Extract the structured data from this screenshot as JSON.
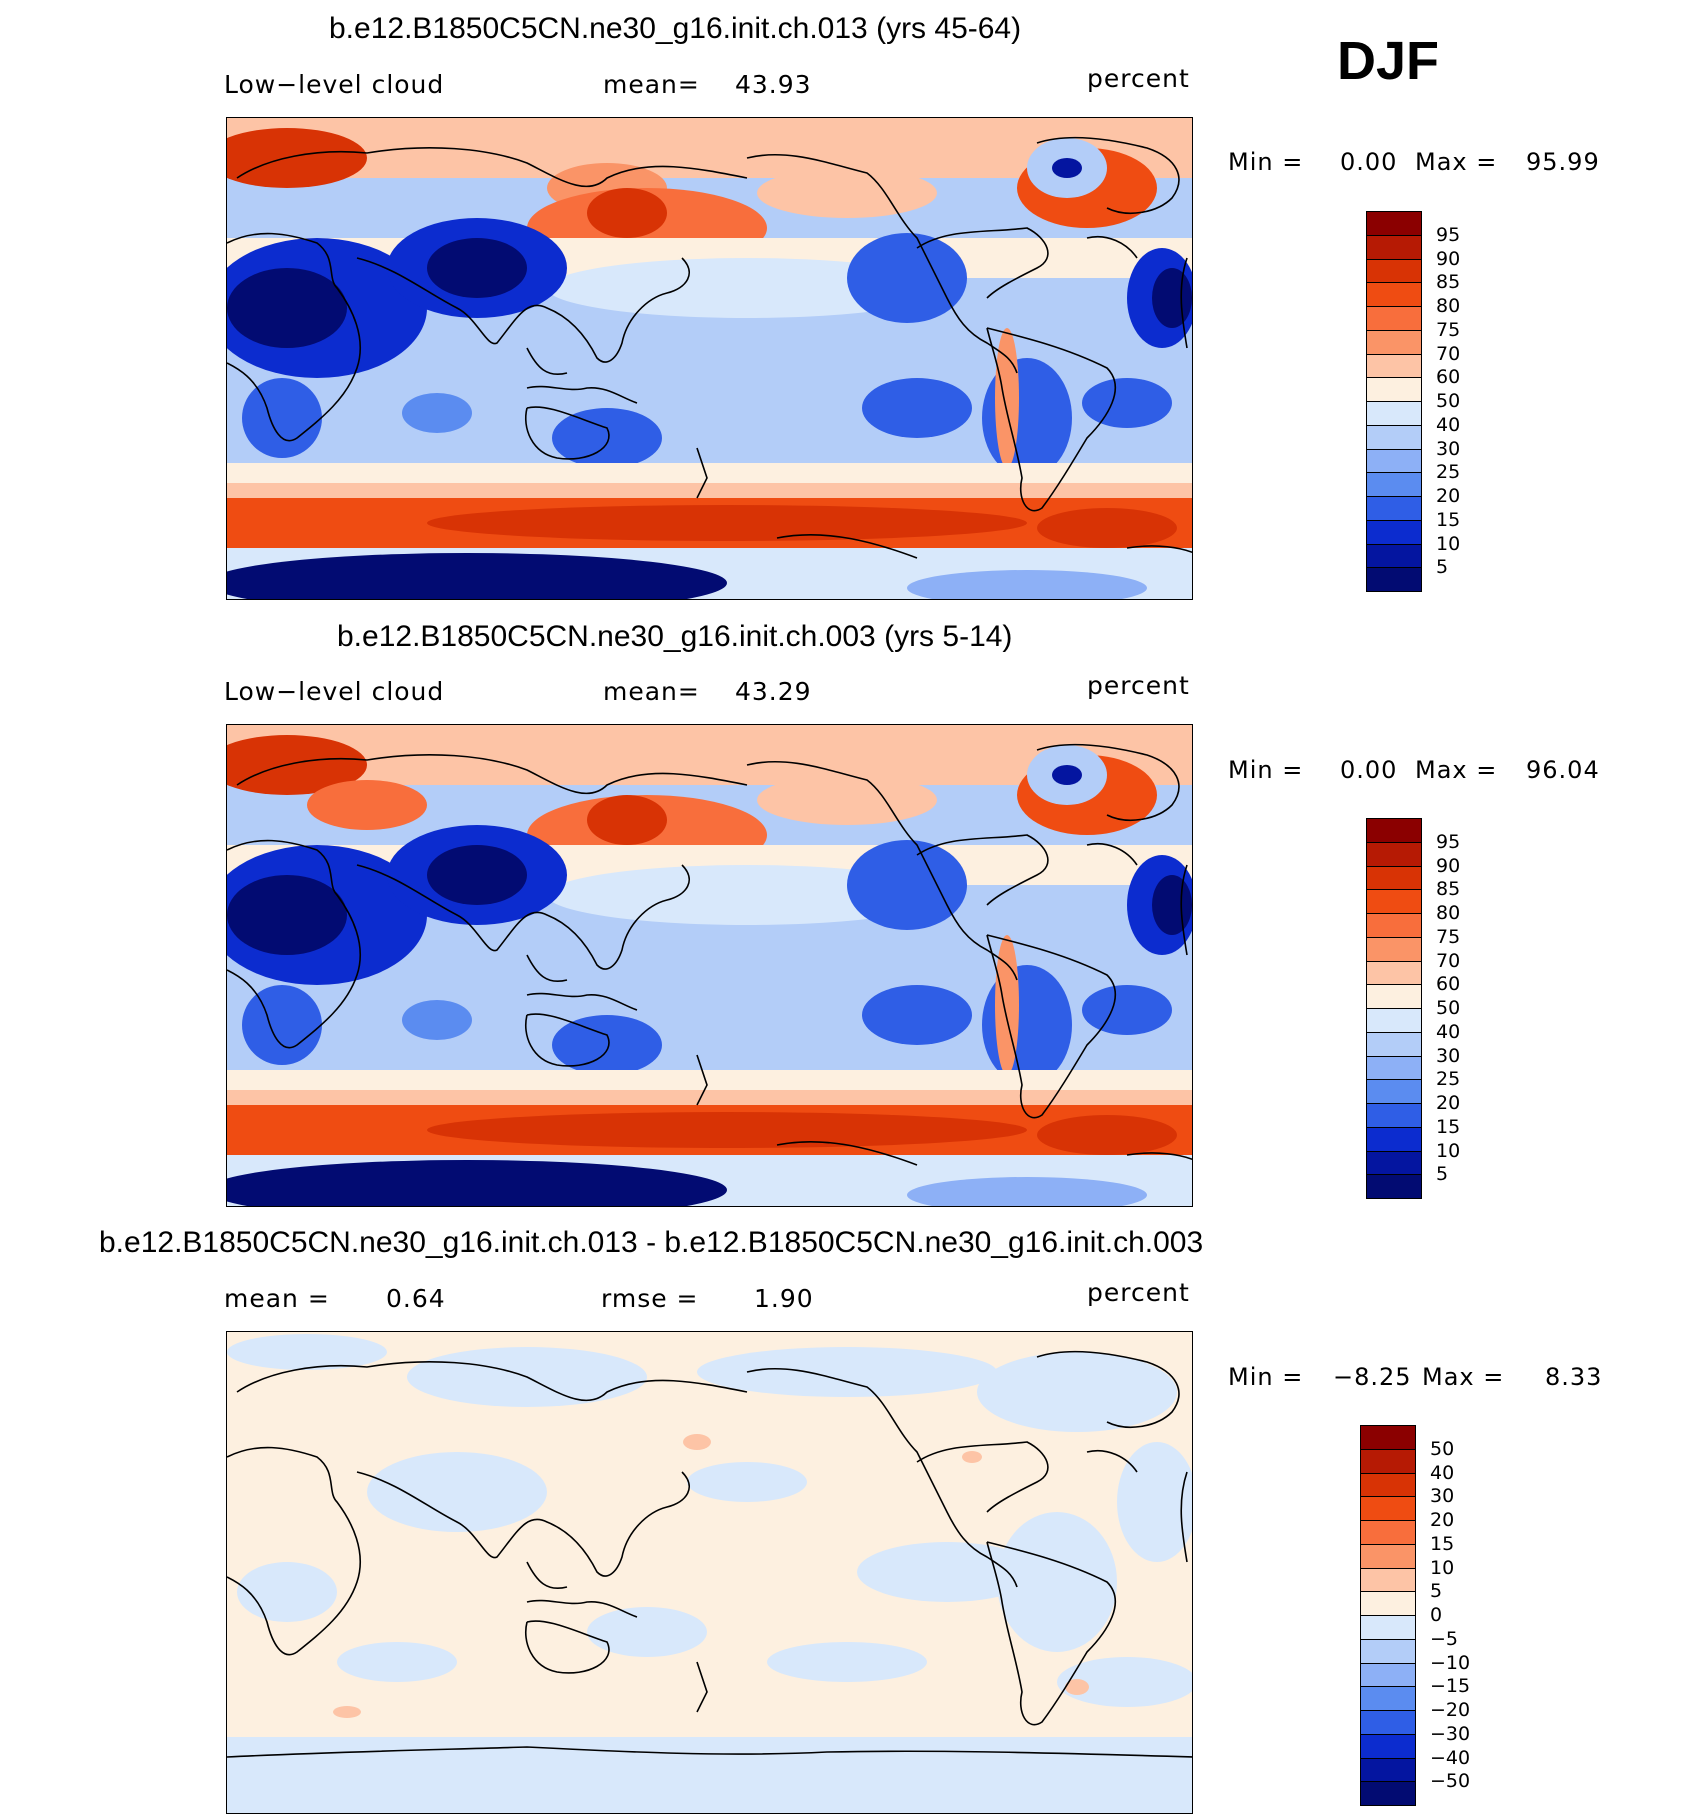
{
  "season": "DJF",
  "unit_label": "percent",
  "panels": [
    {
      "title": "b.e12.B1850C5CN.ne30_g16.init.ch.013 (yrs 45-64)",
      "left_label": "Low−level cloud",
      "stat_label": "mean=",
      "stat_value": "43.93",
      "minmax": {
        "min_label": "Min =",
        "min": "0.00",
        "max_label": "Max =",
        "max": "95.99"
      }
    },
    {
      "title": "b.e12.B1850C5CN.ne30_g16.init.ch.003 (yrs 5-14)",
      "left_label": "Low−level cloud",
      "stat_label": "mean=",
      "stat_value": "43.29",
      "minmax": {
        "min_label": "Min =",
        "min": "0.00",
        "max_label": "Max =",
        "max": "96.04"
      }
    },
    {
      "title": "b.e12.B1850C5CN.ne30_g16.init.ch.013 - b.e12.B1850C5CN.ne30_g16.init.ch.003",
      "left_label": "mean =",
      "left_value": "0.64",
      "stat_label": "rmse =",
      "stat_value": "1.90",
      "minmax": {
        "min_label": "Min =",
        "min": "−8.25",
        "max_label": "Max =",
        "max": "8.33"
      }
    }
  ],
  "colorbar_abs": {
    "labels": [
      "95",
      "90",
      "85",
      "80",
      "75",
      "70",
      "60",
      "50",
      "40",
      "30",
      "25",
      "20",
      "15",
      "10",
      "5"
    ],
    "colors": [
      "#8b0000",
      "#b61a04",
      "#d83305",
      "#ef4c12",
      "#f86e3c",
      "#fa9467",
      "#fdc4a6",
      "#fdf0e0",
      "#d8e8fb",
      "#b3cdf8",
      "#8db0f6",
      "#5b8cf0",
      "#2f5ee6",
      "#0c2ccf",
      "#0415a0",
      "#020b72"
    ]
  },
  "colorbar_diff": {
    "labels": [
      "50",
      "40",
      "30",
      "20",
      "15",
      "10",
      "5",
      "0",
      "−5",
      "−10",
      "−15",
      "−20",
      "−30",
      "−40",
      "−50"
    ],
    "colors": [
      "#8b0000",
      "#b61a04",
      "#d83305",
      "#ef4c12",
      "#f86e3c",
      "#fa9467",
      "#fdc4a6",
      "#fdf0e0",
      "#d8e8fb",
      "#b3cdf8",
      "#8db0f6",
      "#5b8cf0",
      "#2f5ee6",
      "#0c2ccf",
      "#0415a0",
      "#020b72"
    ]
  }
}
